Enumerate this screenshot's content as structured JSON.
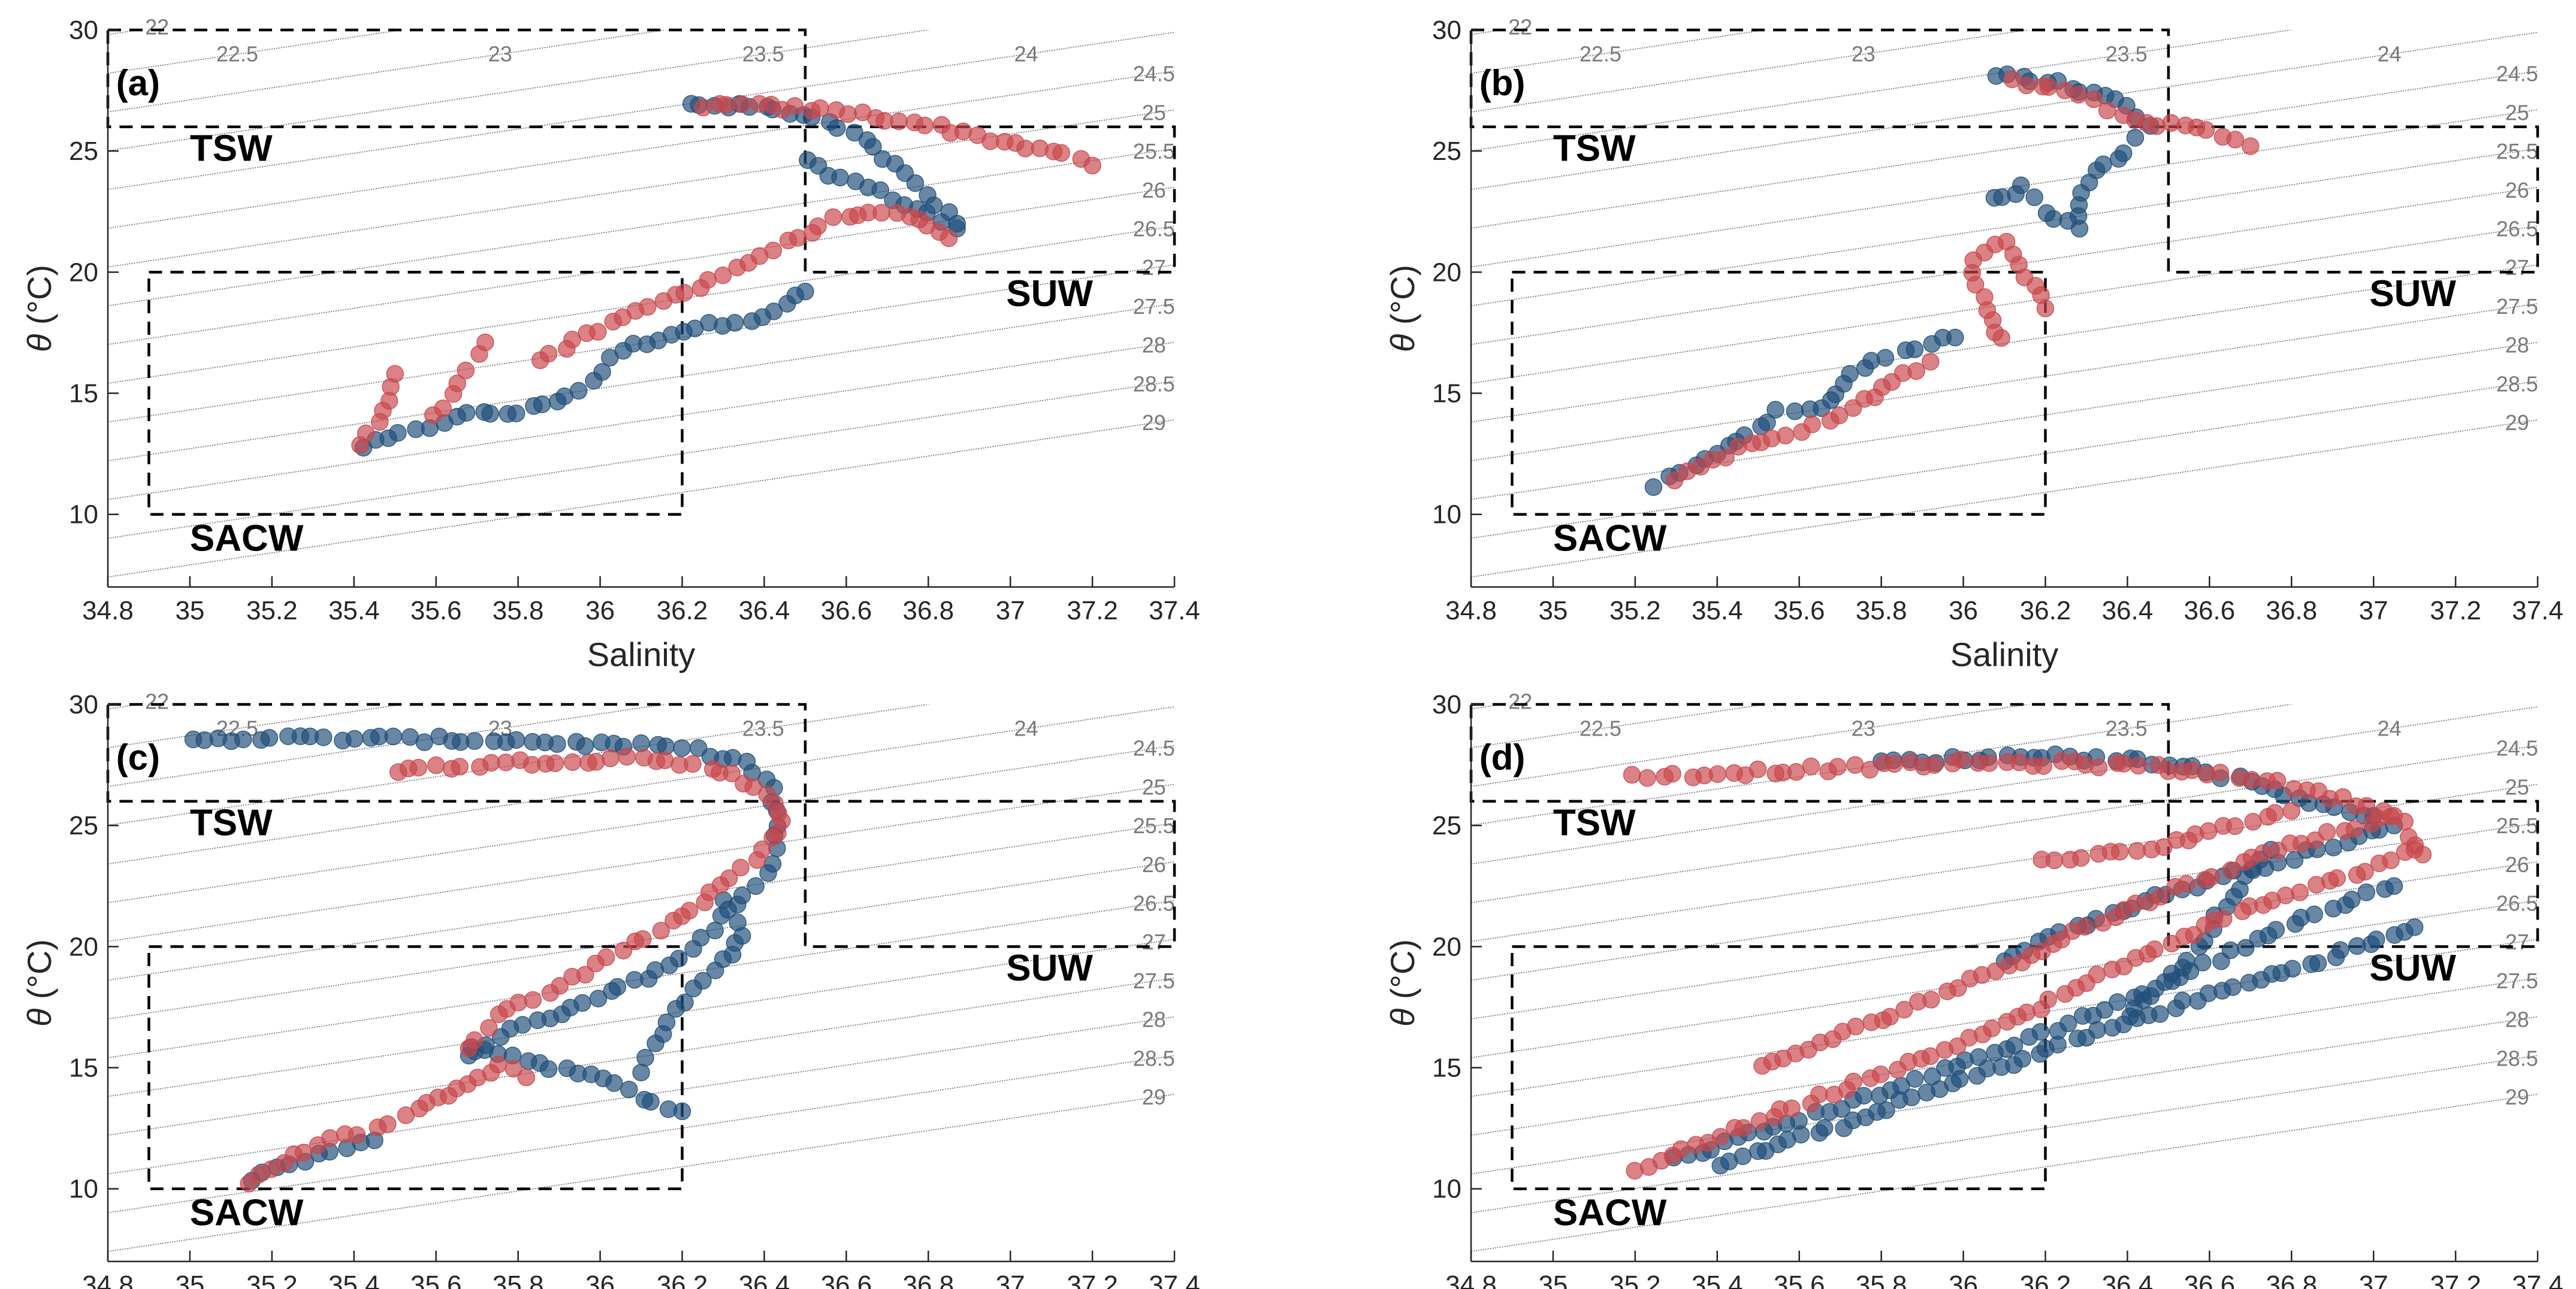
{
  "figure": {
    "xlabel": "Salinity",
    "ylabel_symbol": "θ",
    "ylabel_unit": " (°C)",
    "xlim": [
      34.8,
      37.4
    ],
    "ylim": [
      7,
      30
    ],
    "xticks": [
      "34.8",
      "35",
      "35.2",
      "35.4",
      "35.6",
      "35.8",
      "36",
      "36.2",
      "36.4",
      "36.6",
      "36.8",
      "37",
      "37.2",
      "37.4"
    ],
    "yticks": [
      "10",
      "15",
      "20",
      "25",
      "30"
    ],
    "colors": {
      "series_a": "#1f4e79",
      "series_b": "#c8474b",
      "contour": "#6e6e6e",
      "box": "#000000"
    }
  },
  "water_masses": [
    {
      "name": "TSW",
      "s_min": 34.8,
      "s_max": 36.5,
      "t_min": 26,
      "t_max": 30
    },
    {
      "name": "SUW",
      "s_min": 36.5,
      "s_max": 37.4,
      "t_min": 20,
      "t_max": 26
    },
    {
      "name": "SACW",
      "s_min": 34.9,
      "s_max": 36.2,
      "t_min": 10,
      "t_max": 20
    }
  ],
  "isopycnals": [
    "22",
    "22.5",
    "23",
    "23.5",
    "24",
    "24.5",
    "25",
    "25.5",
    "26",
    "26.5",
    "27",
    "27.5",
    "28",
    "28.5",
    "29"
  ],
  "chart_data": [
    {
      "type": "scatter",
      "panel": "(a)",
      "title": "(a)",
      "xlabel": "Salinity",
      "ylabel": "θ (°C)",
      "xlim": [
        34.8,
        37.4
      ],
      "ylim": [
        7,
        30
      ],
      "series": [
        {
          "name": "blue",
          "paths": [
            [
              [
                35.42,
                12.8
              ],
              [
                35.48,
                13.1
              ],
              [
                35.58,
                13.6
              ],
              [
                35.65,
                14.1
              ],
              [
                35.8,
                14.2
              ],
              [
                35.95,
                15.1
              ],
              [
                36.05,
                16.8
              ],
              [
                36.2,
                17.6
              ],
              [
                36.4,
                18.2
              ],
              [
                36.5,
                19.2
              ]
            ],
            [
              [
                36.22,
                26.9
              ],
              [
                36.4,
                26.8
              ],
              [
                36.55,
                26.2
              ],
              [
                36.65,
                25.4
              ],
              [
                36.72,
                24.4
              ],
              [
                36.8,
                23.2
              ],
              [
                36.87,
                22.0
              ]
            ],
            [
              [
                36.5,
                24.5
              ],
              [
                36.65,
                23.5
              ],
              [
                36.8,
                22.4
              ],
              [
                36.87,
                21.8
              ]
            ]
          ]
        },
        {
          "name": "red",
          "paths": [
            [
              [
                35.42,
                12.9
              ],
              [
                35.47,
                14.2
              ],
              [
                35.5,
                15.8
              ]
            ],
            [
              [
                35.6,
                14.0
              ],
              [
                35.66,
                15.5
              ],
              [
                35.72,
                17.1
              ]
            ],
            [
              [
                35.85,
                16.4
              ],
              [
                36.0,
                17.6
              ],
              [
                36.15,
                18.8
              ],
              [
                36.3,
                19.9
              ],
              [
                36.45,
                21.2
              ],
              [
                36.6,
                22.4
              ],
              [
                36.75,
                22.3
              ],
              [
                36.85,
                21.4
              ]
            ],
            [
              [
                36.25,
                26.9
              ],
              [
                36.45,
                26.8
              ],
              [
                36.6,
                26.6
              ],
              [
                36.8,
                26.1
              ],
              [
                36.95,
                25.5
              ],
              [
                37.1,
                25.0
              ],
              [
                37.2,
                24.4
              ]
            ]
          ]
        }
      ]
    },
    {
      "type": "scatter",
      "panel": "(b)",
      "title": "(b)",
      "xlabel": "Salinity",
      "ylabel": "θ (°C)",
      "xlim": [
        34.8,
        37.4
      ],
      "ylim": [
        7,
        30
      ],
      "series": [
        {
          "name": "blue",
          "paths": [
            [
              [
                35.25,
                11.2
              ],
              [
                35.4,
                12.5
              ],
              [
                35.55,
                14.2
              ],
              [
                35.65,
                14.3
              ],
              [
                35.72,
                15.8
              ],
              [
                35.85,
                16.8
              ],
              [
                35.98,
                17.3
              ]
            ],
            [
              [
                36.07,
                23.0
              ],
              [
                36.15,
                23.5
              ],
              [
                36.2,
                22.5
              ],
              [
                36.28,
                21.9
              ],
              [
                36.3,
                23.8
              ],
              [
                36.4,
                25.0
              ],
              [
                36.45,
                26.0
              ],
              [
                36.38,
                27.2
              ],
              [
                36.2,
                27.9
              ],
              [
                36.08,
                28.1
              ]
            ]
          ]
        },
        {
          "name": "red",
          "paths": [
            [
              [
                35.3,
                11.5
              ],
              [
                35.45,
                12.7
              ],
              [
                35.6,
                13.4
              ],
              [
                35.7,
                14.1
              ],
              [
                35.8,
                15.2
              ],
              [
                35.92,
                16.3
              ]
            ],
            [
              [
                36.1,
                17.2
              ],
              [
                36.05,
                18.5
              ],
              [
                36.02,
                20.5
              ],
              [
                36.1,
                21.3
              ],
              [
                36.2,
                18.5
              ]
            ],
            [
              [
                36.12,
                27.9
              ],
              [
                36.25,
                27.6
              ],
              [
                36.35,
                26.8
              ],
              [
                36.45,
                26.2
              ],
              [
                36.6,
                25.8
              ],
              [
                36.7,
                25.2
              ]
            ]
          ]
        }
      ]
    },
    {
      "type": "scatter",
      "panel": "(c)",
      "title": "(c)",
      "xlabel": "Salinity",
      "ylabel": "θ (°C)",
      "xlim": [
        34.8,
        37.4
      ],
      "ylim": [
        7,
        30
      ],
      "series": [
        {
          "name": "blue",
          "paths": [
            [
              [
                35.0,
                28.6
              ],
              [
                35.4,
                28.6
              ],
              [
                35.8,
                28.5
              ],
              [
                36.2,
                28.2
              ],
              [
                36.35,
                27.6
              ],
              [
                36.42,
                26.5
              ],
              [
                36.43,
                25.0
              ],
              [
                36.42,
                23.5
              ],
              [
                36.38,
                22.5
              ],
              [
                36.3,
                21.2
              ],
              [
                36.2,
                19.5
              ],
              [
                36.05,
                18.3
              ],
              [
                35.9,
                17.3
              ],
              [
                35.75,
                16.3
              ],
              [
                35.68,
                15.5
              ]
            ],
            [
              [
                35.68,
                15.9
              ],
              [
                35.85,
                15.2
              ],
              [
                36.0,
                14.5
              ],
              [
                36.1,
                13.8
              ],
              [
                36.2,
                13.2
              ]
            ],
            [
              [
                35.15,
                10.4
              ],
              [
                35.25,
                11.0
              ],
              [
                35.35,
                11.6
              ],
              [
                35.45,
                12.0
              ]
            ],
            [
              [
                36.3,
                22.0
              ],
              [
                36.35,
                20.5
              ],
              [
                36.28,
                19.0
              ],
              [
                36.15,
                16.5
              ],
              [
                36.1,
                14.8
              ]
            ]
          ]
        },
        {
          "name": "red",
          "paths": [
            [
              [
                35.5,
                27.3
              ],
              [
                35.8,
                27.6
              ],
              [
                36.1,
                27.8
              ],
              [
                36.3,
                27.3
              ],
              [
                36.4,
                26.3
              ],
              [
                36.45,
                25.2
              ],
              [
                36.4,
                24.0
              ],
              [
                36.32,
                22.8
              ],
              [
                36.2,
                21.3
              ],
              [
                36.05,
                19.8
              ],
              [
                35.9,
                18.4
              ],
              [
                35.75,
                17.1
              ],
              [
                35.68,
                15.8
              ]
            ],
            [
              [
                35.15,
                10.3
              ],
              [
                35.25,
                11.4
              ],
              [
                35.35,
                12.0
              ],
              [
                35.45,
                12.5
              ],
              [
                35.55,
                13.2
              ],
              [
                35.65,
                14.2
              ],
              [
                35.75,
                15.1
              ],
              [
                35.82,
                14.6
              ]
            ]
          ]
        }
      ]
    },
    {
      "type": "scatter",
      "panel": "(d)",
      "title": "(d)",
      "xlabel": "Salinity",
      "ylabel": "θ (°C)",
      "xlim": [
        34.8,
        37.4
      ],
      "ylim": [
        7,
        30
      ],
      "series": [
        {
          "name": "blue",
          "paths": [
            [
              [
                35.4,
                11.0
              ],
              [
                35.7,
                12.6
              ],
              [
                36.0,
                14.5
              ],
              [
                36.3,
                16.3
              ],
              [
                36.6,
                18.0
              ],
              [
                36.9,
                19.6
              ],
              [
                37.1,
                20.8
              ]
            ],
            [
              [
                35.3,
                11.2
              ],
              [
                35.7,
                13.4
              ],
              [
                36.1,
                15.8
              ],
              [
                36.5,
                18.5
              ],
              [
                36.8,
                21.0
              ],
              [
                37.05,
                22.5
              ]
            ],
            [
              [
                36.1,
                19.5
              ],
              [
                36.3,
                21.0
              ],
              [
                36.5,
                22.2
              ],
              [
                36.7,
                23.2
              ],
              [
                36.9,
                24.2
              ],
              [
                37.05,
                25.0
              ]
            ],
            [
              [
                35.8,
                27.6
              ],
              [
                36.2,
                27.9
              ],
              [
                36.5,
                27.6
              ],
              [
                36.7,
                26.8
              ],
              [
                36.85,
                26.0
              ],
              [
                37.0,
                25.4
              ]
            ],
            [
              [
                36.4,
                17.0
              ],
              [
                36.55,
                19.5
              ],
              [
                36.65,
                22.0
              ],
              [
                36.75,
                24.0
              ]
            ]
          ]
        },
        {
          "name": "red",
          "paths": [
            [
              [
                35.2,
                10.8
              ],
              [
                35.5,
                12.8
              ],
              [
                35.8,
                14.8
              ],
              [
                36.1,
                16.8
              ],
              [
                36.3,
                18.5
              ],
              [
                36.5,
                20.2
              ],
              [
                36.7,
                21.6
              ],
              [
                36.95,
                23.0
              ],
              [
                37.1,
                24.0
              ]
            ],
            [
              [
                35.5,
                15.0
              ],
              [
                35.8,
                17.0
              ],
              [
                36.05,
                18.8
              ],
              [
                36.3,
                20.8
              ],
              [
                36.55,
                22.6
              ],
              [
                36.8,
                24.2
              ],
              [
                37.05,
                25.4
              ]
            ],
            [
              [
                35.2,
                27.0
              ],
              [
                35.6,
                27.3
              ],
              [
                36.0,
                27.6
              ],
              [
                36.4,
                27.5
              ],
              [
                36.7,
                27.0
              ],
              [
                36.9,
                26.2
              ],
              [
                37.05,
                25.5
              ],
              [
                37.12,
                23.8
              ]
            ],
            [
              [
                36.2,
                23.5
              ],
              [
                36.45,
                24.0
              ],
              [
                36.6,
                24.8
              ],
              [
                36.8,
                25.6
              ]
            ]
          ]
        }
      ]
    }
  ]
}
